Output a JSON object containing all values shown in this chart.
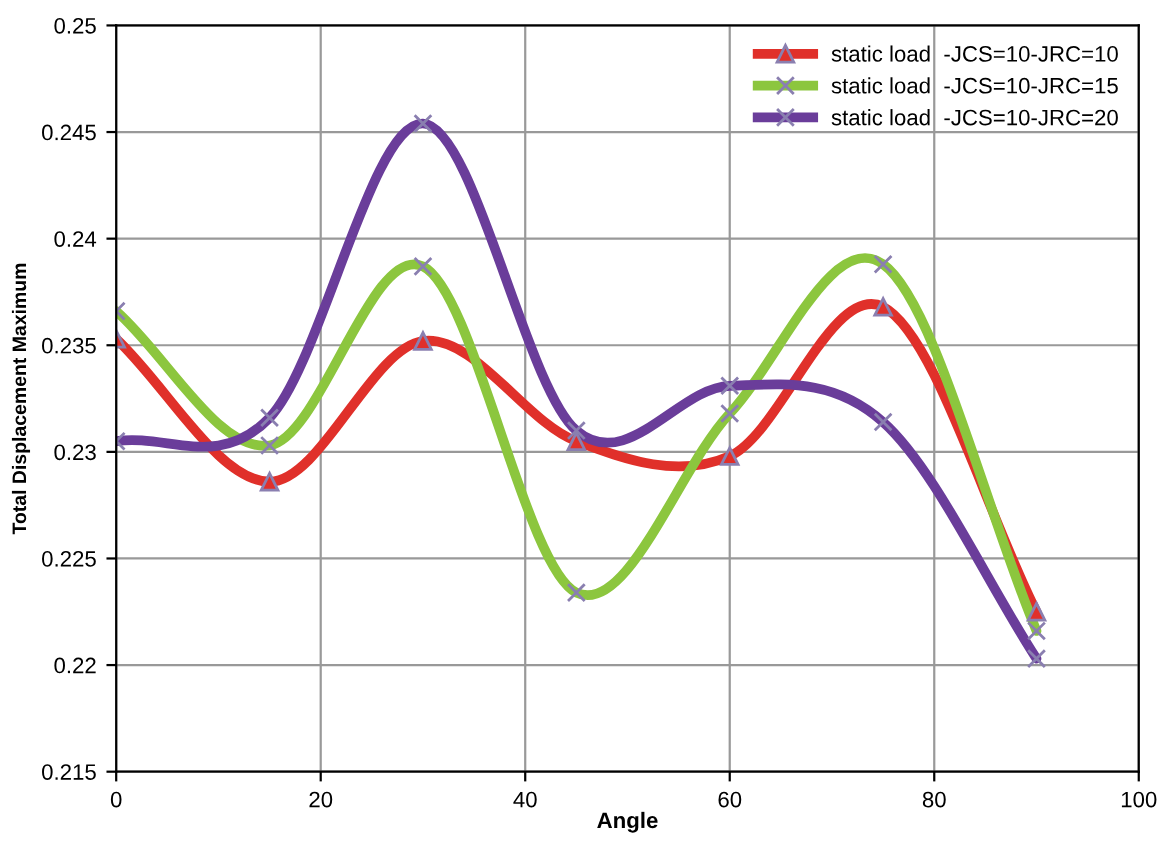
{
  "chart_data": {
    "type": "line",
    "xlabel": "Angle",
    "ylabel": "Total Displacement Maximum",
    "x": [
      0,
      15,
      30,
      45,
      60,
      75,
      90
    ],
    "series": [
      {
        "name": "static load  -JCS=10-JRC=10",
        "color": "#e0302a",
        "marker": "triangle",
        "values": [
          0.2353,
          0.2286,
          0.2352,
          0.2305,
          0.2298,
          0.2368,
          0.2225
        ]
      },
      {
        "name": "static load  -JCS=10-JRC=15",
        "color": "#8cc63e",
        "marker": "cross",
        "values": [
          0.2366,
          0.2303,
          0.2387,
          0.2234,
          0.2318,
          0.2388,
          0.2216
        ]
      },
      {
        "name": "static load  -JCS=10-JRC=20",
        "color": "#6a3d9a",
        "marker": "cross",
        "values": [
          0.2305,
          0.2316,
          0.2454,
          0.231,
          0.2331,
          0.2314,
          0.2203
        ]
      }
    ],
    "xlim": [
      0,
      100
    ],
    "xticks": [
      0,
      20,
      40,
      60,
      80,
      100
    ],
    "ylim": [
      0.215,
      0.25
    ],
    "yticks": [
      0.215,
      0.22,
      0.225,
      0.23,
      0.235,
      0.24,
      0.245,
      0.25
    ],
    "grid": true,
    "legend": "top right",
    "line_style": "solid"
  }
}
